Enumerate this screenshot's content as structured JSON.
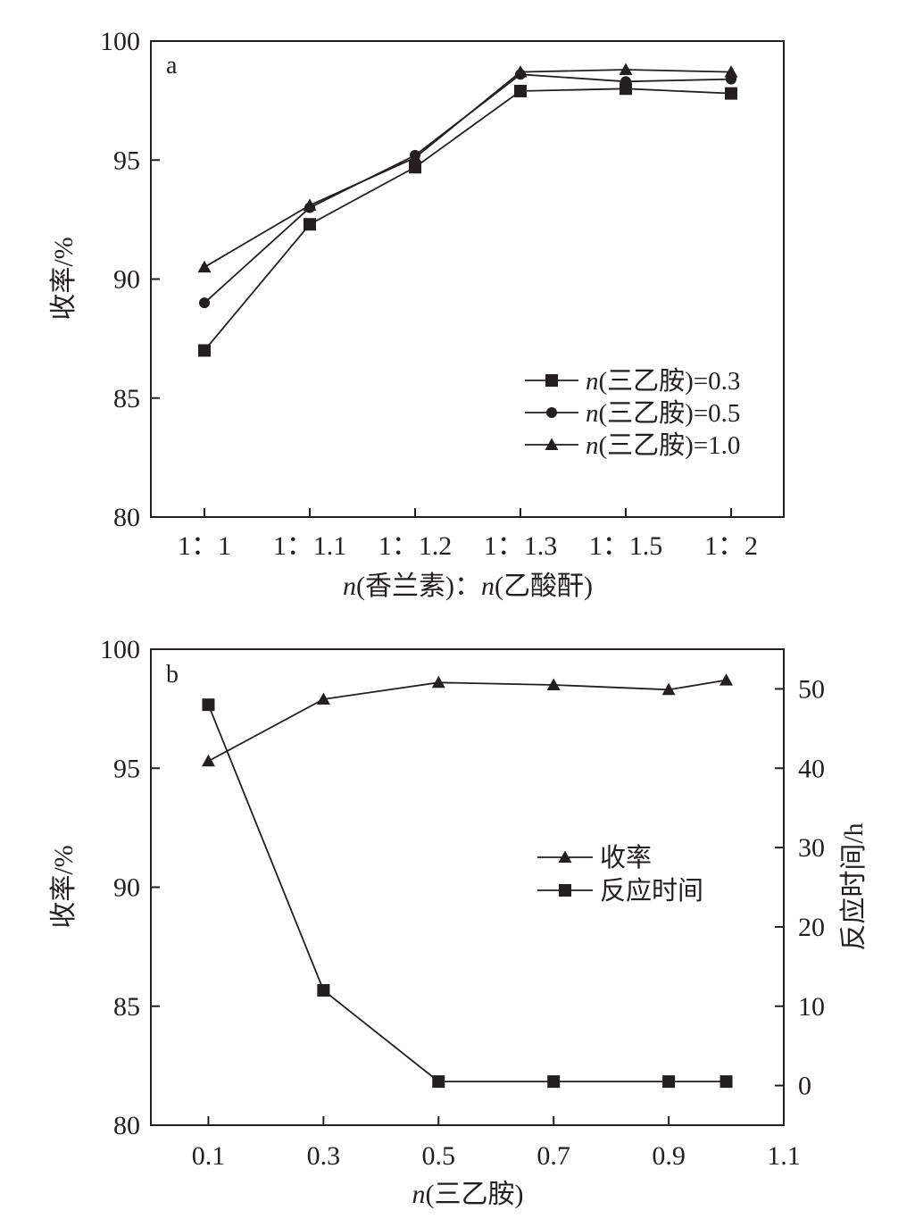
{
  "chart_data": [
    {
      "type": "line",
      "panel_label": "a",
      "categories": [
        "1：1",
        "1：1.1",
        "1：1.2",
        "1：1.3",
        "1：1.5",
        "1：2"
      ],
      "xlabel_parts": [
        "n",
        "(香兰素)：",
        "n",
        "(乙酸酐)"
      ],
      "ylabel": "收率/%",
      "ylim": [
        80,
        100
      ],
      "yticks": [
        "80",
        "85",
        "90",
        "95",
        "100"
      ],
      "grid": false,
      "legend_position": "bottom-right",
      "series": [
        {
          "name_italic": "n",
          "name_rest": "(三乙胺)=0.3",
          "marker": "square",
          "values": [
            87.0,
            92.3,
            94.7,
            97.9,
            98.0,
            97.8
          ]
        },
        {
          "name_italic": "n",
          "name_rest": "(三乙胺)=0.5",
          "marker": "circle",
          "values": [
            89.0,
            93.0,
            95.2,
            98.6,
            98.3,
            98.4
          ]
        },
        {
          "name_italic": "n",
          "name_rest": "(三乙胺)=1.0",
          "marker": "triangle",
          "values": [
            90.5,
            93.1,
            95.1,
            98.7,
            98.8,
            98.7
          ]
        }
      ]
    },
    {
      "type": "line",
      "panel_label": "b",
      "x": [
        0.1,
        0.3,
        0.5,
        0.7,
        0.9,
        1.0
      ],
      "xlim": [
        0.0,
        1.1
      ],
      "xticks": [
        "0.1",
        "0.3",
        "0.5",
        "0.7",
        "0.9",
        "1.1"
      ],
      "xlabel_parts": [
        "n",
        "(三乙胺)"
      ],
      "ylabel": "收率/%",
      "ylim": [
        80,
        100
      ],
      "yticks": [
        "80",
        "85",
        "90",
        "95",
        "100"
      ],
      "y2label": "反应时间/h",
      "y2lim": [
        -5,
        55
      ],
      "y2ticks": [
        "0",
        "10",
        "20",
        "30",
        "40",
        "50"
      ],
      "grid": false,
      "legend_position": "center-right",
      "series": [
        {
          "name": "收率",
          "marker": "triangle",
          "axis": "left",
          "values": [
            95.3,
            97.9,
            98.6,
            98.5,
            98.3,
            98.7
          ]
        },
        {
          "name": "反应时间",
          "marker": "square",
          "axis": "right",
          "values": [
            48,
            12,
            0.5,
            0.5,
            0.5,
            0.5
          ]
        }
      ]
    }
  ]
}
